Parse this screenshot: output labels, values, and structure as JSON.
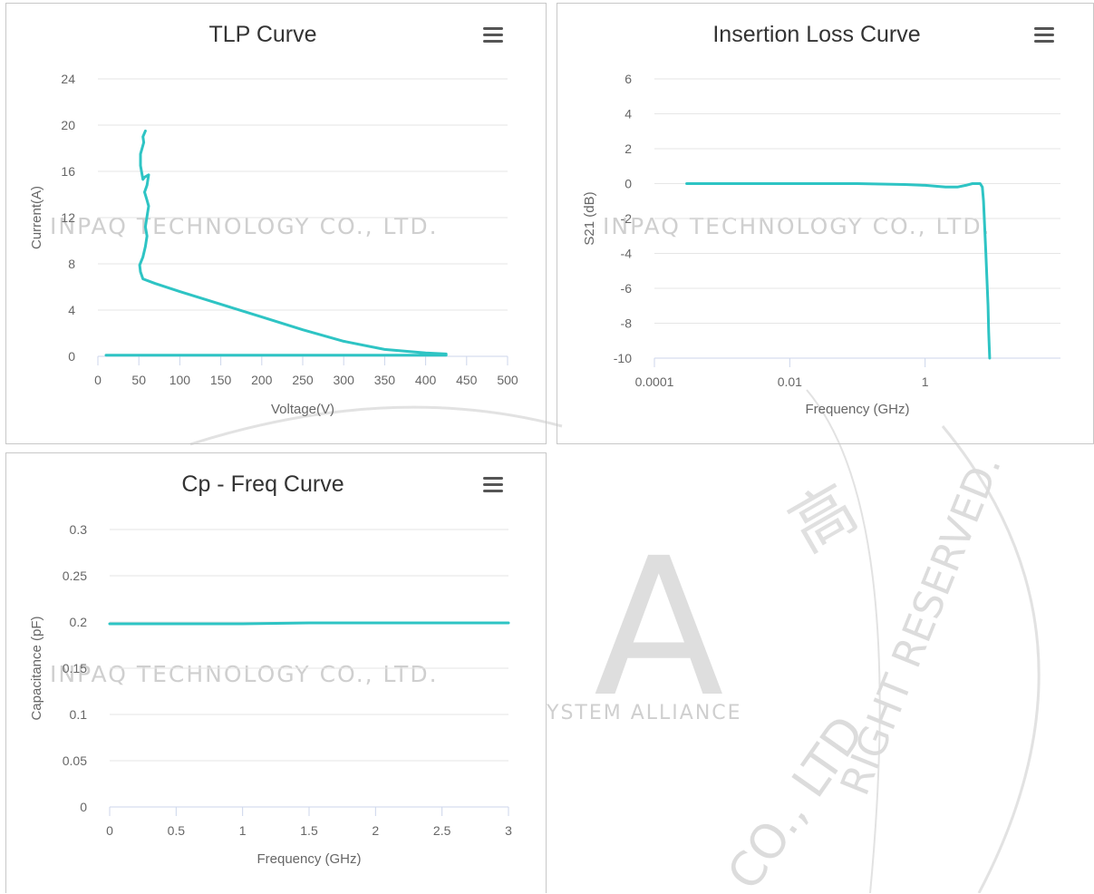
{
  "watermark": {
    "company": "INPAQ TECHNOLOGY CO., LTD.",
    "alliance": "YSTEM ALLIANCE",
    "rights": "RIGHT RESERVED.",
    "seal_text": "CO., LTD",
    "big_letter": "A",
    "seal_glyph": "高"
  },
  "colors": {
    "series": "#2ec4c4",
    "grid": "#e6e6e6",
    "axis": "#ccd6eb",
    "text": "#666666",
    "title": "#333333",
    "watermark": "#d4d4d4"
  },
  "menu_icon": "hamburger-menu-icon",
  "chart_data": [
    {
      "id": "tlp",
      "type": "line",
      "title": "TLP Curve",
      "xlabel": "Voltage(V)",
      "ylabel": "Current(A)",
      "xlim": [
        0,
        500
      ],
      "ylim": [
        0,
        24
      ],
      "xticks": [
        0,
        50,
        100,
        150,
        200,
        250,
        300,
        350,
        400,
        450,
        500
      ],
      "yticks": [
        0,
        4,
        8,
        12,
        16,
        20,
        24
      ],
      "grid": true,
      "legend": "none",
      "series": [
        {
          "x": [
            10,
            100,
            200,
            300,
            380,
            425,
            425,
            400,
            350,
            300,
            250,
            200,
            150,
            100,
            70,
            55,
            52,
            51,
            55,
            58,
            60,
            58,
            60,
            62,
            60,
            57,
            60,
            62,
            57,
            55,
            52,
            52,
            56,
            55,
            58
          ],
          "y": [
            0.1,
            0.1,
            0.1,
            0.1,
            0.1,
            0.1,
            0.2,
            0.3,
            0.6,
            1.3,
            2.3,
            3.4,
            4.5,
            5.6,
            6.3,
            6.7,
            7.3,
            7.9,
            8.6,
            9.5,
            10.4,
            11.2,
            12.1,
            13.0,
            13.5,
            14.2,
            14.8,
            15.7,
            15.5,
            15.3,
            16.5,
            17.5,
            18.5,
            19.0,
            19.5
          ]
        }
      ]
    },
    {
      "id": "insertion-loss",
      "type": "line",
      "title": "Insertion Loss Curve",
      "xlabel": "Frequency (GHz)",
      "ylabel": "S21 (dB)",
      "xscale": "log",
      "xlim": [
        0.0001,
        100
      ],
      "ylim": [
        -10,
        6
      ],
      "xticks": [
        0.0001,
        0.01,
        1
      ],
      "xtick_labels": [
        "0.0001",
        "0.01",
        "1"
      ],
      "yticks": [
        -10,
        -8,
        -6,
        -4,
        -2,
        0,
        2,
        4,
        6
      ],
      "grid": true,
      "legend": "none",
      "series": [
        {
          "x": [
            0.0003,
            0.001,
            0.01,
            0.1,
            0.5,
            1,
            2,
            3,
            4,
            5,
            6,
            6.5,
            7,
            7.3,
            7.6,
            7.9,
            8.2,
            8.5,
            8.7,
            9.0
          ],
          "y": [
            0.0,
            0.0,
            0.0,
            0.0,
            -0.05,
            -0.1,
            -0.2,
            -0.2,
            -0.1,
            0.0,
            0.0,
            0.0,
            -0.2,
            -1.0,
            -2.5,
            -4.0,
            -5.5,
            -7.0,
            -8.5,
            -10.0
          ]
        }
      ]
    },
    {
      "id": "cp-freq",
      "type": "line",
      "title": "Cp - Freq Curve",
      "xlabel": "Frequency (GHz)",
      "ylabel": "Capacitance (pF)",
      "xlim": [
        0,
        3
      ],
      "ylim": [
        0,
        0.3
      ],
      "xticks": [
        0,
        0.5,
        1,
        1.5,
        2,
        2.5,
        3
      ],
      "xtick_labels": [
        "0",
        "0.5",
        "1",
        "1.5",
        "2",
        "2.5",
        "3"
      ],
      "yticks": [
        0,
        0.05,
        0.1,
        0.15,
        0.2,
        0.25,
        0.3
      ],
      "ytick_labels": [
        "0",
        "0.05",
        "0.1",
        "0.15",
        "0.2",
        "0.25",
        "0.3"
      ],
      "grid": true,
      "legend": "none",
      "series": [
        {
          "x": [
            0,
            0.5,
            1,
            1.5,
            2,
            2.5,
            3
          ],
          "y": [
            0.198,
            0.198,
            0.198,
            0.199,
            0.199,
            0.199,
            0.199
          ]
        }
      ]
    }
  ]
}
